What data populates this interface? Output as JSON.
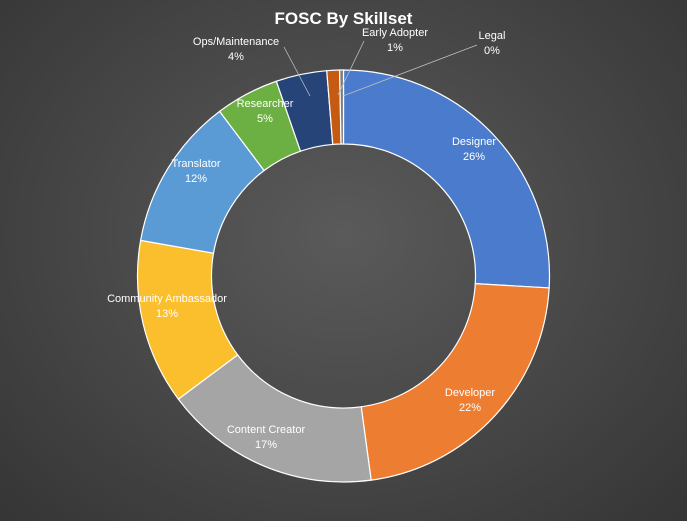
{
  "chart_data": {
    "type": "pie",
    "title": "FOSC By Skillset",
    "donut": true,
    "legend": "none",
    "slices": [
      {
        "label": "Designer",
        "value": 26,
        "display": "26%",
        "color": "#4a7bcc"
      },
      {
        "label": "Developer",
        "value": 22,
        "display": "22%",
        "color": "#ed7d31"
      },
      {
        "label": "Content Creator",
        "value": 17,
        "display": "17%",
        "color": "#a5a5a5"
      },
      {
        "label": "Community Ambassador",
        "value": 13,
        "display": "13%",
        "color": "#fbbf2d"
      },
      {
        "label": "Translator",
        "value": 12,
        "display": "12%",
        "color": "#5b9bd5"
      },
      {
        "label": "Researcher",
        "value": 5,
        "display": "5%",
        "color": "#6cb043"
      },
      {
        "label": "Ops/Maintenance",
        "value": 4,
        "display": "4%",
        "color": "#264478"
      },
      {
        "label": "Early Adopter",
        "value": 1,
        "display": "1%",
        "color": "#c55a11"
      },
      {
        "label": "Legal",
        "value": 0.3,
        "display": "0%",
        "color": "#7f7f7f"
      }
    ]
  }
}
